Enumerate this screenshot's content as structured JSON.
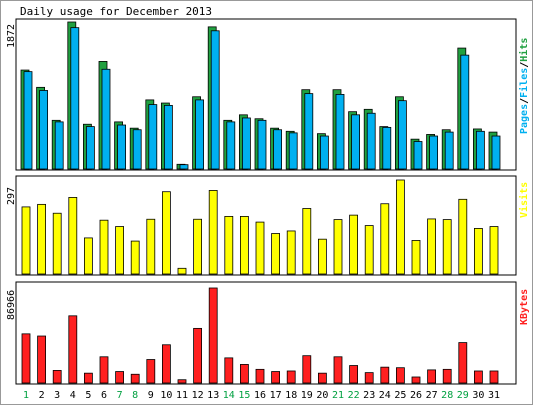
{
  "title": "Daily usage for December 2013",
  "colors": {
    "hits": "#20a040",
    "files": "#00b0f0",
    "pages": "#00b0f0",
    "visits": "#ffff00",
    "kbytes": "#ff2020",
    "weekday": "#000000",
    "weekend": "#00a040",
    "separator": "#000000",
    "slash": "#000000"
  },
  "legend": {
    "hits_panel": [
      "Pages",
      "/",
      "Files",
      "/",
      "Hits"
    ],
    "visits_panel": "Visits",
    "kbytes_panel": "KBytes"
  },
  "chart_data": [
    {
      "type": "bar",
      "title": "Pages/Files/Hits",
      "ymax_label": "1872",
      "ylim": [
        0,
        1872
      ],
      "categories": [
        "1",
        "2",
        "3",
        "4",
        "5",
        "6",
        "7",
        "8",
        "9",
        "10",
        "11",
        "12",
        "13",
        "14",
        "15",
        "16",
        "17",
        "18",
        "19",
        "20",
        "21",
        "22",
        "23",
        "24",
        "25",
        "26",
        "27",
        "28",
        "29",
        "30",
        "31"
      ],
      "weekend": [
        1,
        7,
        8,
        14,
        15,
        21,
        22,
        28,
        29
      ],
      "series": [
        {
          "name": "Hits",
          "values": [
            1260,
            1040,
            620,
            1872,
            570,
            1370,
            600,
            520,
            880,
            840,
            60,
            920,
            1810,
            620,
            690,
            640,
            520,
            480,
            1010,
            450,
            1010,
            730,
            760,
            540,
            920,
            380,
            440,
            500,
            1540,
            510,
            470
          ]
        },
        {
          "name": "Files",
          "values": [
            1240,
            1000,
            600,
            1800,
            540,
            1270,
            560,
            500,
            820,
            810,
            55,
            880,
            1760,
            600,
            650,
            620,
            500,
            460,
            960,
            420,
            950,
            690,
            710,
            530,
            870,
            350,
            420,
            470,
            1450,
            480,
            420
          ]
        },
        {
          "name": "Pages",
          "values": [
            1240,
            1000,
            600,
            1800,
            540,
            1270,
            560,
            500,
            820,
            810,
            55,
            880,
            1760,
            600,
            650,
            620,
            500,
            460,
            960,
            420,
            950,
            690,
            710,
            530,
            870,
            350,
            420,
            470,
            1450,
            480,
            420
          ]
        }
      ]
    },
    {
      "type": "bar",
      "title": "Visits",
      "ymax_label": "297",
      "ylim": [
        0,
        297
      ],
      "categories": [
        "1",
        "2",
        "3",
        "4",
        "5",
        "6",
        "7",
        "8",
        "9",
        "10",
        "11",
        "12",
        "13",
        "14",
        "15",
        "16",
        "17",
        "18",
        "19",
        "20",
        "21",
        "22",
        "23",
        "24",
        "25",
        "26",
        "27",
        "28",
        "29",
        "30",
        "31"
      ],
      "series": [
        {
          "name": "Visits",
          "values": [
            212,
            220,
            192,
            242,
            114,
            170,
            150,
            104,
            173,
            260,
            18,
            173,
            264,
            182,
            182,
            164,
            128,
            136,
            207,
            110,
            172,
            186,
            153,
            222,
            297,
            106,
            174,
            172,
            236,
            144,
            150
          ]
        }
      ]
    },
    {
      "type": "bar",
      "title": "KBytes",
      "ymax_label": "86966",
      "ylim": [
        0,
        86966
      ],
      "categories": [
        "1",
        "2",
        "3",
        "4",
        "5",
        "6",
        "7",
        "8",
        "9",
        "10",
        "11",
        "12",
        "13",
        "14",
        "15",
        "16",
        "17",
        "18",
        "19",
        "20",
        "21",
        "22",
        "23",
        "24",
        "25",
        "26",
        "27",
        "28",
        "29",
        "30",
        "31"
      ],
      "series": [
        {
          "name": "KBytes",
          "values": [
            45000,
            43000,
            11500,
            61500,
            9000,
            24000,
            10500,
            8000,
            21500,
            35000,
            3000,
            50000,
            86966,
            23000,
            17000,
            12500,
            10500,
            11000,
            25000,
            9000,
            24000,
            16000,
            9500,
            14500,
            14000,
            5500,
            12000,
            12500,
            37000,
            11000,
            11000
          ]
        }
      ]
    }
  ]
}
